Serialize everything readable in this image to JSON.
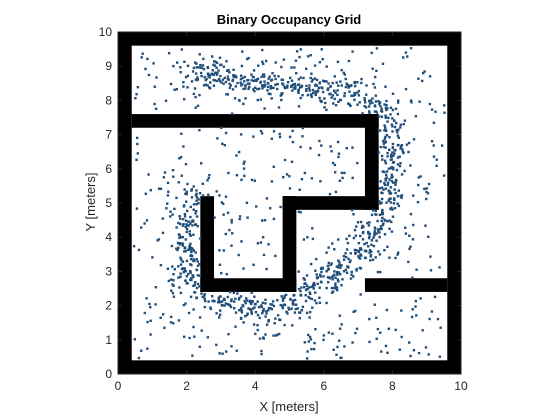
{
  "chart_data": {
    "type": "scatter",
    "title": "Binary Occupancy Grid",
    "xlabel": "X [meters]",
    "ylabel": "Y [meters]",
    "xlim": [
      0,
      10
    ],
    "ylim": [
      0,
      10
    ],
    "xticks": [
      "0",
      "2",
      "4",
      "6",
      "8",
      "10"
    ],
    "yticks": [
      "0",
      "1",
      "2",
      "3",
      "4",
      "5",
      "6",
      "7",
      "8",
      "9",
      "10"
    ],
    "grid": false,
    "occupied_color": "#000000",
    "free_color": "#ffffff",
    "marker_color": "#1f4e79",
    "occupied_regions": [
      {
        "x": [
          0,
          0.4
        ],
        "y": [
          0,
          10
        ]
      },
      {
        "x": [
          9.6,
          10
        ],
        "y": [
          0,
          10
        ]
      },
      {
        "x": [
          0,
          10
        ],
        "y": [
          0,
          0.4
        ]
      },
      {
        "x": [
          0,
          10
        ],
        "y": [
          9.6,
          10
        ]
      },
      {
        "x": [
          0.4,
          7.6
        ],
        "y": [
          7.2,
          7.6
        ]
      },
      {
        "x": [
          7.2,
          7.6
        ],
        "y": [
          4.8,
          7.6
        ]
      },
      {
        "x": [
          4.8,
          7.6
        ],
        "y": [
          4.8,
          5.2
        ]
      },
      {
        "x": [
          4.8,
          5.2
        ],
        "y": [
          2.4,
          5.2
        ]
      },
      {
        "x": [
          2.4,
          5.2
        ],
        "y": [
          2.4,
          2.8
        ]
      },
      {
        "x": [
          2.4,
          2.8
        ],
        "y": [
          2.4,
          5.2
        ]
      },
      {
        "x": [
          7.2,
          9.6
        ],
        "y": [
          2.4,
          2.8
        ]
      }
    ],
    "samples": {
      "total_points": 1500,
      "curve": [
        [
          2.4,
          5.3
        ],
        [
          2.0,
          4.5
        ],
        [
          1.9,
          3.5
        ],
        [
          2.2,
          2.6
        ],
        [
          3.0,
          2.1
        ],
        [
          4.0,
          1.9
        ],
        [
          5.0,
          2.0
        ],
        [
          6.0,
          2.6
        ],
        [
          7.0,
          3.6
        ],
        [
          7.7,
          4.6
        ],
        [
          8.0,
          5.8
        ],
        [
          8.0,
          7.0
        ],
        [
          7.6,
          7.8
        ],
        [
          6.5,
          8.3
        ],
        [
          5.0,
          8.4
        ],
        [
          3.5,
          8.6
        ],
        [
          2.0,
          8.9
        ]
      ],
      "curve_fraction": 0.62,
      "spread": 0.25
    }
  }
}
